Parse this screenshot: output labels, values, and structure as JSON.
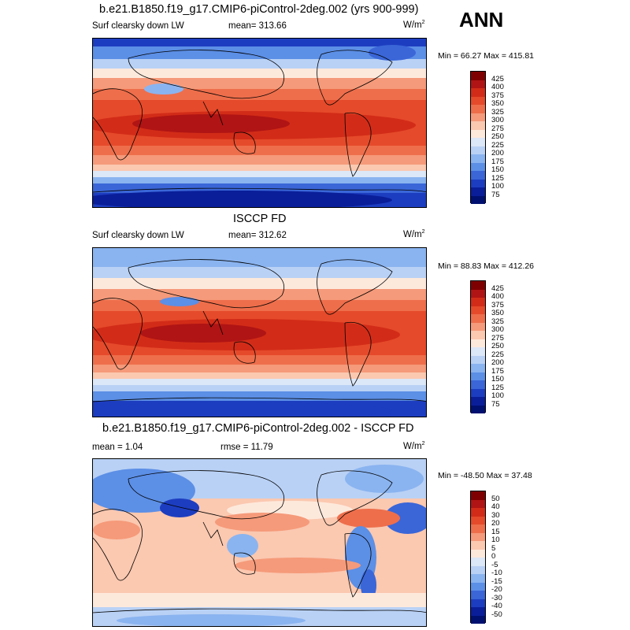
{
  "season": "ANN",
  "units": "W/m",
  "units_sup": "2",
  "panels": [
    {
      "title": "b.e21.B1850.f19_g17.CMIP6-piControl-2deg.002 (yrs 900-999)",
      "left_label": "Surf clearsky down LW",
      "center_label": "mean= 313.66",
      "minmax": "Min =  66.27 Max = 415.81",
      "levels": [
        "425",
        "400",
        "375",
        "350",
        "325",
        "300",
        "275",
        "250",
        "225",
        "200",
        "175",
        "150",
        "125",
        "100",
        "75"
      ],
      "colors": [
        "#7f0000",
        "#b01414",
        "#d22c18",
        "#e54a2a",
        "#ee6e4b",
        "#f59a7a",
        "#fbc8b0",
        "#fde9dc",
        "#dce7f7",
        "#b9d1f5",
        "#8ab4f0",
        "#5c8fe6",
        "#3a66d8",
        "#1d3dc0",
        "#0a1e9a",
        "#001070"
      ]
    },
    {
      "title": "ISCCP FD",
      "left_label": "Surf clearsky down LW",
      "center_label": "mean= 312.62",
      "minmax": "Min =  88.83 Max = 412.26",
      "levels": [
        "425",
        "400",
        "375",
        "350",
        "325",
        "300",
        "275",
        "250",
        "225",
        "200",
        "175",
        "150",
        "125",
        "100",
        "75"
      ],
      "colors": [
        "#7f0000",
        "#b01414",
        "#d22c18",
        "#e54a2a",
        "#ee6e4b",
        "#f59a7a",
        "#fbc8b0",
        "#fde9dc",
        "#dce7f7",
        "#b9d1f5",
        "#8ab4f0",
        "#5c8fe6",
        "#3a66d8",
        "#1d3dc0",
        "#0a1e9a",
        "#001070"
      ]
    },
    {
      "title": "b.e21.B1850.f19_g17.CMIP6-piControl-2deg.002 - ISCCP FD",
      "left_label": "mean =   1.04",
      "center_label": "rmse =  11.79",
      "minmax": "Min = -48.50 Max =  37.48",
      "levels": [
        "50",
        "40",
        "30",
        "20",
        "15",
        "10",
        "5",
        "0",
        "-5",
        "-10",
        "-15",
        "-20",
        "-30",
        "-40",
        "-50"
      ],
      "colors": [
        "#7f0000",
        "#b01414",
        "#d22c18",
        "#e54a2a",
        "#ee6e4b",
        "#f59a7a",
        "#fbc8b0",
        "#fde9dc",
        "#dce7f7",
        "#b9d1f5",
        "#8ab4f0",
        "#5c8fe6",
        "#3a66d8",
        "#1d3dc0",
        "#0a1e9a",
        "#001070"
      ]
    }
  ]
}
